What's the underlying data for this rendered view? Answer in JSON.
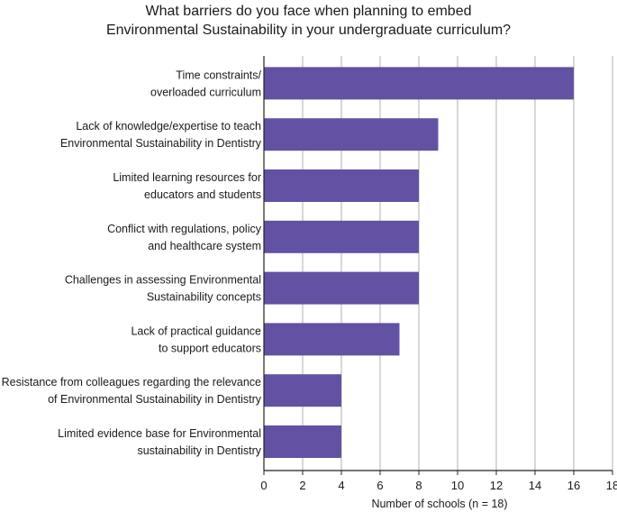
{
  "chart_data": {
    "type": "bar",
    "orientation": "horizontal",
    "title": [
      "What barriers do you face when planning to embed",
      "Environmental Sustainability in your undergraduate curriculum?"
    ],
    "categories": [
      [
        "Time constraints/",
        "overloaded curriculum"
      ],
      [
        "Lack of knowledge/expertise to teach",
        "Environmental Sustainability in Dentistry"
      ],
      [
        "Limited learning resources for",
        "educators and students"
      ],
      [
        "Conflict with regulations, policy",
        "and healthcare system"
      ],
      [
        "Challenges in assessing Environmental",
        "Sustainability concepts"
      ],
      [
        "Lack of practical guidance",
        "to support educators"
      ],
      [
        "Resistance from colleagues regarding the relevance",
        "of Environmental Sustainability in Dentistry"
      ],
      [
        "Limited evidence base for Environmental",
        "sustainability in Dentistry"
      ]
    ],
    "values": [
      16,
      9,
      8,
      8,
      8,
      7,
      4,
      4
    ],
    "xlabel": "Number of schools (n = 18)",
    "xlim": [
      0,
      18
    ],
    "xticks": [
      0,
      2,
      4,
      6,
      8,
      10,
      12,
      14,
      16,
      18
    ],
    "grid": true,
    "bar_color": "#6351a3",
    "grid_color": "#b0b0b0"
  }
}
